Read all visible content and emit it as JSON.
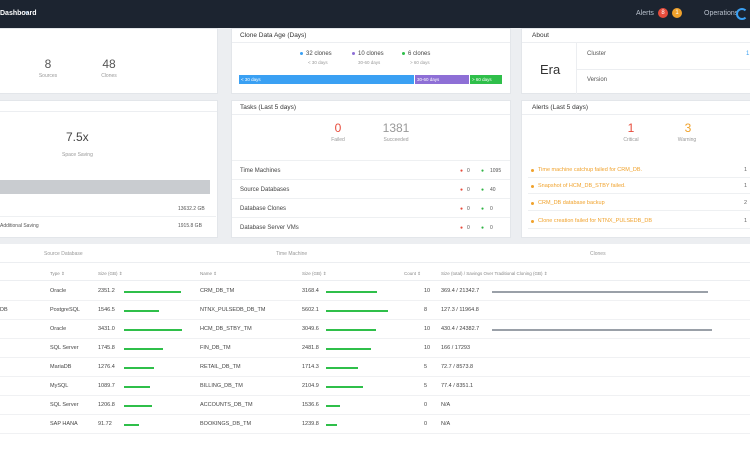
{
  "topbar": {
    "dashboard_label": "Dashboard",
    "alerts_label": "Alerts",
    "alerts_red_count": "8",
    "alerts_yellow_count": "1",
    "operations_label": "Operations",
    "colors": {
      "bg": "#1c2430",
      "red": "#e74c3c",
      "yellow": "#f0a22c",
      "blue": "#3aa0f3"
    }
  },
  "summary": {
    "sources_value": "8",
    "sources_label": "Sources",
    "clones_value": "48",
    "clones_label": "Clones"
  },
  "clone_age": {
    "title": "Clone Data Age (Days)",
    "items": [
      {
        "count": "32 clones",
        "sub": "< 30 days",
        "color": "#3aa0f3"
      },
      {
        "count": "10 clones",
        "sub": "30-60 days",
        "color": "#8e6fd6"
      },
      {
        "count": "6 clones",
        "sub": "> 60 days",
        "color": "#2fbf4a"
      }
    ],
    "bar_labels": [
      "< 30 days",
      "30-60 days",
      "> 60 days"
    ],
    "bar_fractions": [
      0.667,
      0.208,
      0.125
    ]
  },
  "about": {
    "title": "About",
    "product": "Era",
    "cluster_label": "Cluster",
    "cluster_value": "1",
    "version_label": "Version"
  },
  "saving": {
    "value": "7.5x",
    "label": "Space Saving",
    "row1_value": "13632.2 GB",
    "row2_label": "Additional Saving",
    "row2_value": "1915.8 GB"
  },
  "tasks": {
    "title": "Tasks (Last 5 days)",
    "failed_value": "0",
    "failed_label": "Failed",
    "succeeded_value": "1381",
    "succeeded_label": "Succeeded",
    "rows": [
      {
        "label": "Time Machines",
        "failed": "0",
        "succeeded": "1095"
      },
      {
        "label": "Source Databases",
        "failed": "0",
        "succeeded": "40"
      },
      {
        "label": "Database Clones",
        "failed": "0",
        "succeeded": "0"
      },
      {
        "label": "Database Server VMs",
        "failed": "0",
        "succeeded": "0"
      }
    ]
  },
  "alerts_card": {
    "title": "Alerts (Last 5 days)",
    "critical_value": "1",
    "critical_label": "Critical",
    "warning_value": "3",
    "warning_label": "Warning",
    "items": [
      {
        "text": "Time machine catchup failed for CRM_DB.",
        "count": "1"
      },
      {
        "text": "Snapshot of HCM_DB_STBY failed.",
        "count": "1"
      },
      {
        "text": "CRM_DB database backup",
        "count": "2"
      },
      {
        "text": "Clone creation failed for NTNX_PULSEDB_DB",
        "count": "1"
      }
    ]
  },
  "table": {
    "group_source": "Source Database",
    "group_tm": "Time Machine",
    "group_clones": "Clones",
    "headers": {
      "type": "Type",
      "size_source": "Size (GB)",
      "name": "Name",
      "size_tm": "Size (GB)",
      "count": "Count",
      "clones_size": "Size (total) / Savings Over Traditional Cloning (GB)"
    },
    "rows": [
      {
        "db": "",
        "type": "Oracle",
        "size": "2351.2",
        "size_frac": 0.98,
        "tm_name": "CRM_DB_TM",
        "tm_size": "3168.4",
        "tm_frac": 0.82,
        "count": "10",
        "clones": "369.4 / 21342.7",
        "clone_frac": 0.98
      },
      {
        "db": "DB",
        "type": "PostgreSQL",
        "size": "1546.5",
        "size_frac": 0.6,
        "tm_name": "NTNX_PULSEDB_DB_TM",
        "tm_size": "5602.1",
        "tm_frac": 1.0,
        "count": "8",
        "clones": "127.3 / 11964.8",
        "clone_frac": 0.0
      },
      {
        "db": "",
        "type": "Oracle",
        "size": "3431.0",
        "size_frac": 1.0,
        "tm_name": "HCM_DB_STBY_TM",
        "tm_size": "3049.6",
        "tm_frac": 0.8,
        "count": "10",
        "clones": "430.4 / 24382.7",
        "clone_frac": 1.0
      },
      {
        "db": "",
        "type": "SQL Server",
        "size": "1745.8",
        "size_frac": 0.67,
        "tm_name": "FIN_DB_TM",
        "tm_size": "2481.8",
        "tm_frac": 0.72,
        "count": "10",
        "clones": "166 / 17293",
        "clone_frac": 0.0
      },
      {
        "db": "",
        "type": "MariaDB",
        "size": "1276.4",
        "size_frac": 0.51,
        "tm_name": "RETAIL_DB_TM",
        "tm_size": "1714.3",
        "tm_frac": 0.52,
        "count": "5",
        "clones": "72.7 / 8573.8",
        "clone_frac": 0.0
      },
      {
        "db": "",
        "type": "MySQL",
        "size": "1089.7",
        "size_frac": 0.45,
        "tm_name": "BILLING_DB_TM",
        "tm_size": "2104.9",
        "tm_frac": 0.6,
        "count": "5",
        "clones": "77.4 / 8351.1",
        "clone_frac": 0.0
      },
      {
        "db": "",
        "type": "SQL Server",
        "size": "1206.8",
        "size_frac": 0.48,
        "tm_name": "ACCOUNTS_DB_TM",
        "tm_size": "1536.6",
        "tm_frac": 0.22,
        "count": "0",
        "clones": "N/A",
        "clone_frac": 0.0
      },
      {
        "db": "",
        "type": "SAP HANA",
        "size": "91.72",
        "size_frac": 0.26,
        "tm_name": "BOOKINGS_DB_TM",
        "tm_size": "1239.8",
        "tm_frac": 0.18,
        "count": "0",
        "clones": "N/A",
        "clone_frac": 0.0
      }
    ]
  }
}
